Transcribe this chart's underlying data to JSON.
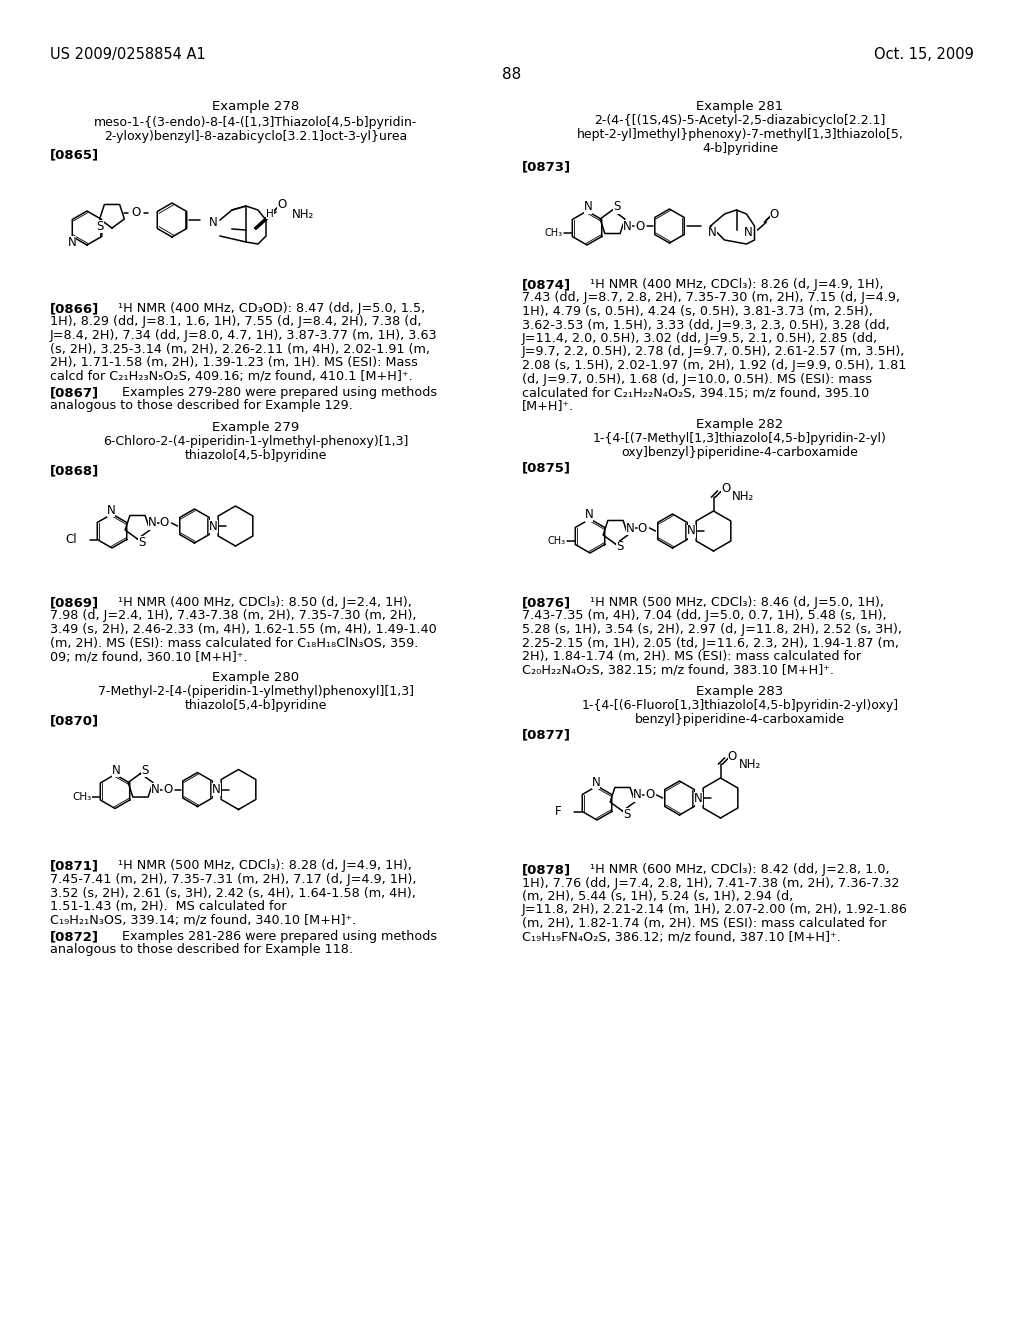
{
  "bg_color": "#ffffff",
  "header_left": "US 2009/0258854 A1",
  "header_right": "Oct. 15, 2009",
  "page_number": "88"
}
